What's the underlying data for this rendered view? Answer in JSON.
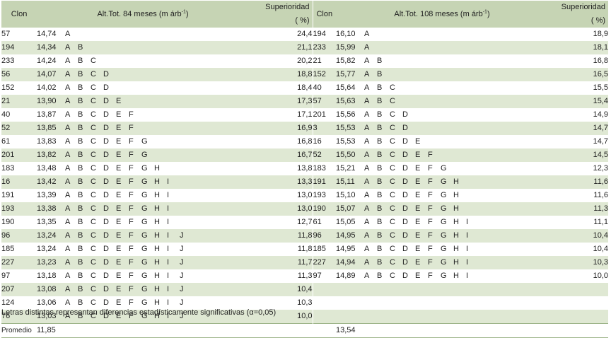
{
  "header": {
    "clon": "Clon",
    "alt84": "Alt.Tot. 84 meses (m árb",
    "alt108": "Alt.Tot. 108 meses (m árb",
    "sup_exp": "-1",
    "paren_close": ")",
    "superioridad": "Superioridad",
    "pct": "( %)"
  },
  "left": [
    {
      "clon": "57",
      "val": "14,74",
      "letters": [
        "A"
      ],
      "sup": "24,4"
    },
    {
      "clon": "194",
      "val": "14,34",
      "letters": [
        "A",
        "B"
      ],
      "sup": "21,1"
    },
    {
      "clon": "233",
      "val": "14,24",
      "letters": [
        "A",
        "B",
        "C"
      ],
      "sup": "20,2"
    },
    {
      "clon": "56",
      "val": "14,07",
      "letters": [
        "A",
        "B",
        "C",
        "D"
      ],
      "sup": "18,8"
    },
    {
      "clon": "152",
      "val": "14,02",
      "letters": [
        "A",
        "B",
        "C",
        "D"
      ],
      "sup": "18,4"
    },
    {
      "clon": "21",
      "val": "13,90",
      "letters": [
        "A",
        "B",
        "C",
        "D",
        "E"
      ],
      "sup": "17,3"
    },
    {
      "clon": "40",
      "val": "13,87",
      "letters": [
        "A",
        "B",
        "C",
        "D",
        "E",
        "F"
      ],
      "sup": "17,1"
    },
    {
      "clon": "52",
      "val": "13,85",
      "letters": [
        "A",
        "B",
        "C",
        "D",
        "E",
        "F"
      ],
      "sup": "16,9"
    },
    {
      "clon": "61",
      "val": "13,83",
      "letters": [
        "A",
        "B",
        "C",
        "D",
        "E",
        "F",
        "G"
      ],
      "sup": "16,8"
    },
    {
      "clon": "201",
      "val": "13,82",
      "letters": [
        "A",
        "B",
        "C",
        "D",
        "E",
        "F",
        "G"
      ],
      "sup": "16,7"
    },
    {
      "clon": "183",
      "val": "13,48",
      "letters": [
        "A",
        "B",
        "C",
        "D",
        "E",
        "F",
        "G",
        "H"
      ],
      "sup": "13,8"
    },
    {
      "clon": "16",
      "val": "13,42",
      "letters": [
        "A",
        "B",
        "C",
        "D",
        "E",
        "F",
        "G",
        "H",
        "I"
      ],
      "sup": "13,3"
    },
    {
      "clon": "191",
      "val": "13,39",
      "letters": [
        "A",
        "B",
        "C",
        "D",
        "E",
        "F",
        "G",
        "H",
        "I"
      ],
      "sup": "13,0"
    },
    {
      "clon": "193",
      "val": "13,38",
      "letters": [
        "A",
        "B",
        "C",
        "D",
        "E",
        "F",
        "G",
        "H",
        "I"
      ],
      "sup": "13,0"
    },
    {
      "clon": "190",
      "val": "13,35",
      "letters": [
        "A",
        "B",
        "C",
        "D",
        "E",
        "F",
        "G",
        "H",
        "I"
      ],
      "sup": "12,7"
    },
    {
      "clon": "96",
      "val": "13,24",
      "letters": [
        "A",
        "B",
        "C",
        "D",
        "E",
        "F",
        "G",
        "H",
        "I",
        "J"
      ],
      "sup": "11,8"
    },
    {
      "clon": "185",
      "val": "13,24",
      "letters": [
        "A",
        "B",
        "C",
        "D",
        "E",
        "F",
        "G",
        "H",
        "I",
        "J"
      ],
      "sup": "11,8"
    },
    {
      "clon": "227",
      "val": "13,23",
      "letters": [
        "A",
        "B",
        "C",
        "D",
        "E",
        "F",
        "G",
        "H",
        "I",
        "J"
      ],
      "sup": "11,7"
    },
    {
      "clon": "97",
      "val": "13,18",
      "letters": [
        "A",
        "B",
        "C",
        "D",
        "E",
        "F",
        "G",
        "H",
        "I",
        "J"
      ],
      "sup": "11,3"
    },
    {
      "clon": "207",
      "val": "13,08",
      "letters": [
        "A",
        "B",
        "C",
        "D",
        "E",
        "F",
        "G",
        "H",
        "I",
        "J"
      ],
      "sup": "10,4"
    },
    {
      "clon": "124",
      "val": "13,06",
      "letters": [
        "A",
        "B",
        "C",
        "D",
        "E",
        "F",
        "G",
        "H",
        "I",
        "J"
      ],
      "sup": "10,3"
    },
    {
      "clon": "76",
      "val": "13,03",
      "letters": [
        "A",
        "B",
        "C",
        "D",
        "E",
        "F",
        "G",
        "H",
        "I",
        "J"
      ],
      "sup": "10,0"
    }
  ],
  "right": [
    {
      "clon": "194",
      "val": "16,10",
      "letters": [
        "A"
      ],
      "sup": "18,9"
    },
    {
      "clon": "233",
      "val": "15,99",
      "letters": [
        "A"
      ],
      "sup": "18,1"
    },
    {
      "clon": "21",
      "val": "15,82",
      "letters": [
        "A",
        "B"
      ],
      "sup": "16,8"
    },
    {
      "clon": "152",
      "val": "15,77",
      "letters": [
        "A",
        "B"
      ],
      "sup": "16,5"
    },
    {
      "clon": "40",
      "val": "15,64",
      "letters": [
        "A",
        "B",
        "C"
      ],
      "sup": "15,5"
    },
    {
      "clon": "57",
      "val": "15,63",
      "letters": [
        "A",
        "B",
        "C"
      ],
      "sup": "15,4"
    },
    {
      "clon": "201",
      "val": "15,56",
      "letters": [
        "A",
        "B",
        "C",
        "D"
      ],
      "sup": "14,9"
    },
    {
      "clon": "3",
      "val": "15,53",
      "letters": [
        "A",
        "B",
        "C",
        "D"
      ],
      "sup": "14,7"
    },
    {
      "clon": "16",
      "val": "15,53",
      "letters": [
        "A",
        "B",
        "C",
        "D",
        "E"
      ],
      "sup": "14,7"
    },
    {
      "clon": "52",
      "val": "15,50",
      "letters": [
        "A",
        "B",
        "C",
        "D",
        "E",
        "F"
      ],
      "sup": "14,5"
    },
    {
      "clon": "183",
      "val": "15,21",
      "letters": [
        "A",
        "B",
        "C",
        "D",
        "E",
        "F",
        "G"
      ],
      "sup": "12,3"
    },
    {
      "clon": "191",
      "val": "15,11",
      "letters": [
        "A",
        "B",
        "C",
        "D",
        "E",
        "F",
        "G",
        "H"
      ],
      "sup": "11,6"
    },
    {
      "clon": "193",
      "val": "15,10",
      "letters": [
        "A",
        "B",
        "C",
        "D",
        "E",
        "F",
        "G",
        "H"
      ],
      "sup": "11,6"
    },
    {
      "clon": "190",
      "val": "15,07",
      "letters": [
        "A",
        "B",
        "C",
        "D",
        "E",
        "F",
        "G",
        "H"
      ],
      "sup": "11,3"
    },
    {
      "clon": "61",
      "val": "15,05",
      "letters": [
        "A",
        "B",
        "C",
        "D",
        "E",
        "F",
        "G",
        "H",
        "I"
      ],
      "sup": "11,1"
    },
    {
      "clon": "96",
      "val": "14,95",
      "letters": [
        "A",
        "B",
        "C",
        "D",
        "E",
        "F",
        "G",
        "H",
        "I"
      ],
      "sup": "10,4"
    },
    {
      "clon": "185",
      "val": "14,95",
      "letters": [
        "A",
        "B",
        "C",
        "D",
        "E",
        "F",
        "G",
        "H",
        "I"
      ],
      "sup": "10,4"
    },
    {
      "clon": "227",
      "val": "14,94",
      "letters": [
        "A",
        "B",
        "C",
        "D",
        "E",
        "F",
        "G",
        "H",
        "I"
      ],
      "sup": "10,3"
    },
    {
      "clon": "97",
      "val": "14,89",
      "letters": [
        "A",
        "B",
        "C",
        "D",
        "E",
        "F",
        "G",
        "H",
        "I"
      ],
      "sup": "10,0"
    }
  ],
  "footer": {
    "promedio_label": "Promedio",
    "promedio_84": "11,85",
    "promedio_108": "13,54"
  },
  "note": "Letras distintas representan diferencias estadísticamente significativas (α=0,05)",
  "colors": {
    "header_bg": "#c6d4b4",
    "shade_bg": "#dfe8d3"
  }
}
